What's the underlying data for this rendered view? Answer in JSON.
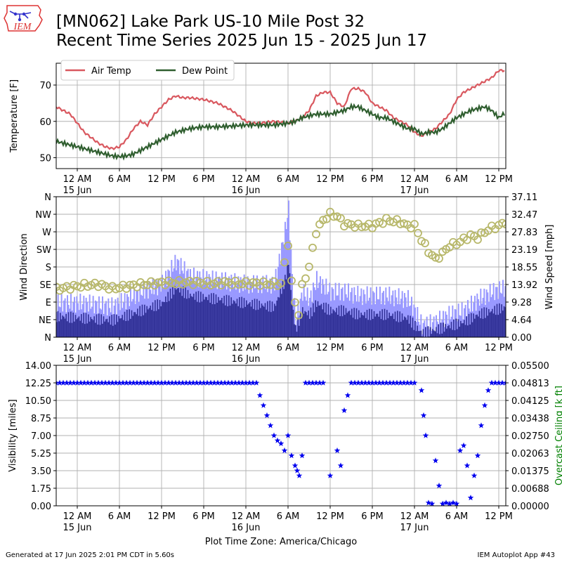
{
  "header": {
    "logo_text": "IEM",
    "title_line1": "[MN062] Lake Park US-10 Mile Post 32",
    "title_line2": "Recent Time Series 2025 Jun 15 - 2025 Jun 17"
  },
  "footer": {
    "generated": "Generated at 17 Jun 2025 2:01 PM CDT in 5.60s",
    "app": "IEM Autoplot App #43"
  },
  "colors": {
    "air_temp": "#d9585f",
    "dew_point": "#2f5e2f",
    "wind_bar_dark": "#333399",
    "wind_bar_light": "#9999ff",
    "wind_dir": "#b8b86b",
    "visibility": "#0000ee",
    "ceiling_label": "#008000",
    "grid": "#b0b0b0"
  },
  "time_axis": {
    "tick_labels": [
      "12 AM",
      "6 AM",
      "12 PM",
      "6 PM",
      "12 AM",
      "6 AM",
      "12 PM",
      "6 PM",
      "12 AM",
      "6 AM",
      "12 PM"
    ],
    "date_labels": [
      "15 Jun",
      "16 Jun",
      "17 Jun"
    ],
    "range_hours": [
      -3,
      61
    ]
  },
  "chart_data": [
    {
      "type": "line",
      "ylabel": "Temperature [F]",
      "ylim": [
        47,
        76
      ],
      "yticks": [
        50,
        60,
        70
      ],
      "grid": true,
      "legend": "top-left",
      "x_unit": "hours since 15 Jun 12 AM",
      "series": [
        {
          "name": "Air Temp",
          "x": [
            -3,
            -1,
            1,
            3,
            4,
            5,
            6,
            7,
            8,
            9,
            10,
            11,
            12,
            13,
            14,
            15,
            16,
            18,
            20,
            22,
            24,
            25,
            26,
            28,
            30,
            31,
            32,
            33,
            34,
            35,
            36,
            37,
            38,
            39,
            40,
            41,
            42,
            43,
            44,
            45,
            46,
            47,
            48,
            49,
            50,
            51,
            52,
            53,
            54,
            55,
            56,
            57,
            58,
            59,
            60,
            61
          ],
          "y": [
            64,
            62,
            57,
            54,
            53,
            52.5,
            53,
            55,
            58,
            60,
            59,
            62,
            64,
            66,
            67,
            66.5,
            66.5,
            66,
            65,
            63,
            60,
            59.5,
            59.5,
            60,
            59.5,
            60,
            61,
            63,
            67,
            68,
            68,
            65,
            64,
            69,
            69,
            68,
            65,
            64,
            63,
            61,
            60,
            59,
            57,
            56,
            57,
            58,
            60,
            62,
            66,
            68,
            69,
            70,
            71,
            72,
            74,
            74
          ]
        },
        {
          "name": "Dew Point",
          "x": [
            -3,
            -1,
            1,
            3,
            5,
            6,
            7,
            8,
            9,
            10,
            12,
            14,
            16,
            18,
            20,
            22,
            24,
            26,
            28,
            30,
            31,
            32,
            33,
            34,
            35,
            36,
            37,
            38,
            39,
            40,
            41,
            42,
            43,
            44,
            45,
            46,
            47,
            48,
            49,
            50,
            51,
            52,
            53,
            54,
            55,
            56,
            57,
            58,
            59,
            60,
            61
          ],
          "y": [
            54.5,
            53.5,
            52.5,
            51.5,
            50.5,
            50.3,
            50.5,
            51,
            52,
            53,
            55,
            57,
            58,
            58.5,
            58.5,
            58.7,
            59,
            59,
            59,
            59.5,
            60,
            61,
            61.5,
            62,
            62,
            62,
            62.5,
            63,
            64,
            64,
            63,
            62,
            61,
            61,
            60,
            59,
            58,
            58,
            56.5,
            57,
            57,
            58,
            59.5,
            61,
            62,
            63,
            63.5,
            64,
            63,
            61,
            62.5
          ]
        }
      ]
    },
    {
      "type": "bar",
      "ylabel": "Wind Direction",
      "y2label": "Wind Speed [mph]",
      "yticks_dir": [
        "N",
        "NE",
        "E",
        "SE",
        "S",
        "SW",
        "W",
        "NW",
        "N"
      ],
      "yticks_speed": [
        "0.00",
        "4.64",
        "9.28",
        "13.92",
        "18.55",
        "23.19",
        "27.83",
        "32.47",
        "37.11"
      ],
      "speed_ylim": [
        0,
        37.11
      ],
      "grid": true,
      "x_unit": "hours since 15 Jun 12 AM",
      "series": [
        {
          "name": "Wind Gust",
          "x": [
            -3,
            1,
            5,
            9,
            12,
            14,
            16,
            20,
            24,
            28,
            29.5,
            30,
            30.5,
            31,
            32,
            33,
            34,
            36,
            38,
            40,
            44,
            47,
            48,
            49,
            51,
            53,
            55,
            57,
            59,
            61
          ],
          "y": [
            9,
            9,
            8,
            12,
            14,
            20,
            16,
            15,
            14,
            14,
            28,
            34,
            16,
            4,
            12,
            10,
            15,
            12,
            12,
            11,
            11,
            10,
            7,
            3,
            4,
            6,
            7,
            10,
            12,
            13
          ]
        },
        {
          "name": "Wind Speed",
          "x": [
            -3,
            1,
            5,
            9,
            12,
            14,
            16,
            20,
            24,
            28,
            29.5,
            30,
            30.5,
            31,
            32,
            33,
            34,
            36,
            38,
            40,
            44,
            47,
            48,
            49,
            51,
            53,
            55,
            57,
            59,
            61
          ],
          "y": [
            5.5,
            5,
            4.5,
            7,
            9,
            13,
            11,
            10,
            9,
            8,
            15,
            20,
            9,
            2,
            7,
            6,
            9,
            7,
            7,
            6,
            6,
            5,
            3,
            1,
            2,
            3,
            4,
            6,
            7,
            8
          ]
        },
        {
          "name": "Wind Direction",
          "x_unit_note": "y in degrees",
          "x": [
            -3,
            -1,
            1,
            3,
            5,
            7,
            9,
            11,
            13,
            15,
            17,
            19,
            21,
            23,
            25,
            27,
            29,
            30,
            30.5,
            31,
            31.5,
            32,
            33,
            34,
            35,
            36,
            37,
            38,
            40,
            42,
            44,
            46,
            47,
            48,
            49,
            50,
            51,
            52,
            53,
            54,
            55,
            56,
            57,
            58,
            59,
            60,
            61
          ],
          "y": [
            123,
            128,
            133,
            135,
            125,
            130,
            135,
            138,
            140,
            140,
            140,
            137,
            140,
            138,
            138,
            137,
            137,
            240,
            140,
            90,
            60,
            130,
            180,
            270,
            300,
            315,
            310,
            290,
            285,
            285,
            300,
            295,
            285,
            285,
            250,
            220,
            200,
            215,
            235,
            240,
            250,
            260,
            255,
            270,
            280,
            285,
            295
          ]
        }
      ]
    },
    {
      "type": "scatter",
      "ylabel": "Visibility [miles]",
      "y2label": "Overcast Ceiling [k ft]",
      "ylim": [
        0,
        14
      ],
      "yticks": [
        "0.00",
        "1.75",
        "3.50",
        "5.25",
        "7.00",
        "8.75",
        "10.50",
        "12.25",
        "14.00"
      ],
      "y2ticks": [
        "0.00000",
        "0.00688",
        "0.01375",
        "0.02063",
        "0.02750",
        "0.03438",
        "0.04125",
        "0.04813",
        "0.05500"
      ],
      "grid": true,
      "x_unit": "hours since 15 Jun 12 AM",
      "xlabel": "Plot Time Zone: America/Chicago",
      "series": [
        {
          "name": "Visibility",
          "x": [
            -3,
            0,
            3,
            6,
            9,
            12,
            15,
            18,
            21,
            24,
            25.5,
            26,
            26.5,
            27,
            27.5,
            28,
            28.5,
            29,
            29.5,
            30,
            30.5,
            31,
            31.3,
            31.6,
            32,
            32.5,
            33,
            33.5,
            34,
            35,
            36,
            37,
            37.5,
            38,
            38.5,
            39,
            39.5,
            40,
            40.5,
            41,
            42,
            43,
            45,
            48,
            49,
            49.3,
            49.6,
            50,
            50.5,
            51,
            51.5,
            52,
            52.5,
            53,
            53.5,
            54,
            54.5,
            55,
            55.5,
            56,
            56.5,
            57,
            57.5,
            58,
            58.5,
            59,
            60,
            61
          ],
          "y": [
            12.25,
            12.25,
            12.25,
            12.25,
            12.25,
            12.25,
            12.25,
            12.25,
            12.25,
            12.25,
            12.25,
            11,
            10,
            9,
            8,
            7,
            6.5,
            6.2,
            5.5,
            7,
            5,
            4,
            3.5,
            3,
            5,
            12.25,
            12.25,
            12.25,
            12.25,
            12.25,
            3,
            5.5,
            4,
            9.5,
            11,
            12.25,
            12.25,
            12.25,
            12.25,
            12.25,
            12.25,
            12.25,
            12.25,
            12.25,
            11.5,
            9,
            7,
            0.3,
            0.2,
            4.5,
            2,
            0.2,
            0.3,
            0.2,
            0.3,
            0.2,
            5.5,
            6,
            4,
            0.8,
            3,
            5,
            8,
            10,
            11.5,
            12.25,
            12.25,
            12.25
          ]
        }
      ]
    }
  ]
}
